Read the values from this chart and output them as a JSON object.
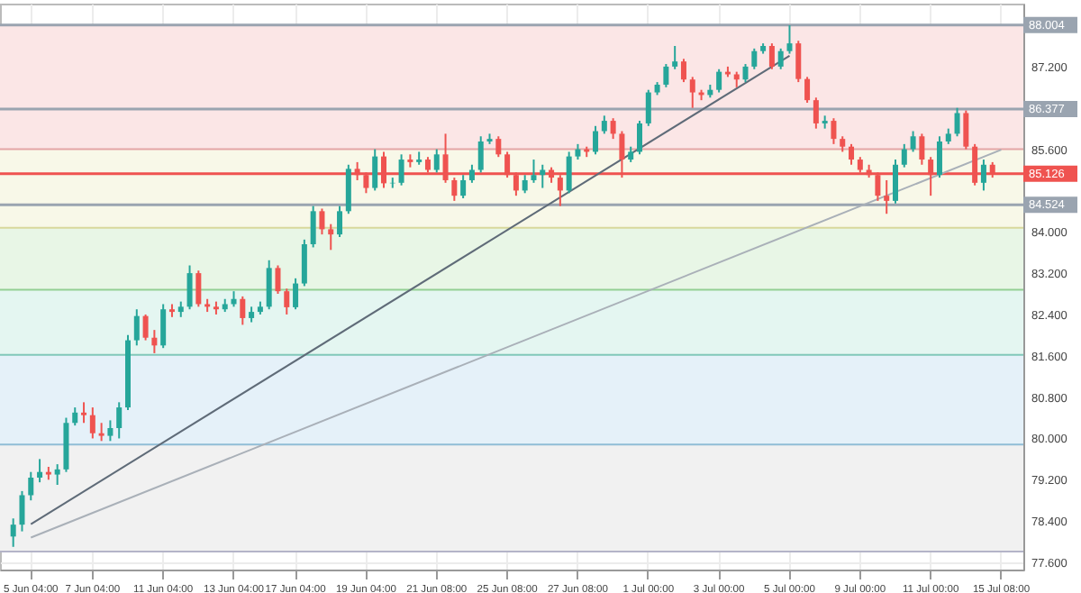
{
  "chart_data": {
    "type": "candlestick",
    "ylim": [
      77.46,
      88.42
    ],
    "categories": [
      null,
      null,
      null,
      "5 Jun 04:00",
      null,
      null,
      null,
      null,
      null,
      null,
      "7 Jun 04:00",
      null,
      null,
      null,
      null,
      null,
      null,
      null,
      "11 Jun 04:00",
      null,
      null,
      null,
      null,
      null,
      null,
      null,
      "13 Jun 04:00",
      null,
      null,
      null,
      null,
      null,
      null,
      "17 Jun 04:00",
      null,
      null,
      null,
      null,
      null,
      null,
      null,
      "19 Jun 04:00",
      null,
      null,
      null,
      null,
      null,
      null,
      null,
      "21 Jun 08:00",
      null,
      null,
      null,
      null,
      null,
      null,
      null,
      "25 Jun 08:00",
      null,
      null,
      null,
      null,
      null,
      null,
      null,
      "27 Jun 08:00",
      null,
      null,
      null,
      null,
      null,
      null,
      null,
      "1 Jul 00:00",
      null,
      null,
      null,
      null,
      null,
      null,
      null,
      "3 Jul 00:00",
      null,
      null,
      null,
      null,
      null,
      null,
      null,
      "5 Jul 00:00",
      null,
      null,
      null,
      null,
      null,
      null,
      null,
      "9 Jul 00:00",
      null,
      null,
      null,
      null,
      null,
      null,
      null,
      "11 Jul 00:00",
      null,
      null,
      null,
      null,
      null,
      null,
      null,
      "15 Jul 08:00",
      null,
      null
    ],
    "yticks": [
      {
        "value": 77.6,
        "label": "77.600"
      },
      {
        "value": 78.4,
        "label": "78.400"
      },
      {
        "value": 79.2,
        "label": "79.200"
      },
      {
        "value": 80,
        "label": "80.000"
      },
      {
        "value": 80.8,
        "label": "80.800"
      },
      {
        "value": 81.6,
        "label": "81.600"
      },
      {
        "value": 82.4,
        "label": "82.400"
      },
      {
        "value": 83.2,
        "label": "83.200"
      },
      {
        "value": 84,
        "label": "84.000"
      },
      {
        "value": 85.6,
        "label": "85.600"
      },
      {
        "value": 87.2,
        "label": "87.200"
      }
    ],
    "grid": true,
    "bands": [
      {
        "axis": "y",
        "from": 85.6,
        "to": 88.004,
        "color": "#fbe6e6"
      },
      {
        "axis": "y",
        "from": 84.08,
        "to": 85.6,
        "color": "#f8f8e8"
      },
      {
        "axis": "y",
        "from": 82.88,
        "to": 84.08,
        "color": "#e8f6e6"
      },
      {
        "axis": "y",
        "from": 81.62,
        "to": 82.88,
        "color": "#e4f6f1"
      },
      {
        "axis": "y",
        "from": 79.88,
        "to": 81.62,
        "color": "#e5f1f9"
      },
      {
        "axis": "y",
        "from": 77.81,
        "to": 79.88,
        "color": "#f1f1f1"
      }
    ],
    "ref_lines": [
      {
        "axis": "y",
        "value": 85.6,
        "color": "#e3a5a5"
      },
      {
        "axis": "y",
        "value": 84.08,
        "color": "#d8d89c"
      },
      {
        "axis": "y",
        "value": 82.88,
        "color": "#93cf93"
      },
      {
        "axis": "y",
        "value": 81.62,
        "color": "#80c7b9"
      },
      {
        "axis": "y",
        "value": 79.88,
        "color": "#90bdd6"
      },
      {
        "axis": "y",
        "value": 77.81,
        "color": "#b4b4c8"
      },
      {
        "axis": "y",
        "value": 88.004,
        "label": "88.004",
        "color": "#9aa4b0"
      },
      {
        "axis": "y",
        "value": 86.377,
        "label": "86.377",
        "color": "#9aa4b0"
      },
      {
        "axis": "y",
        "value": 84.524,
        "label": "84.524",
        "color": "#9aa4b0"
      },
      {
        "axis": "y",
        "value": 85.126,
        "label": "85.126",
        "color": "#ef5350"
      }
    ],
    "series": [
      {
        "type": "line",
        "color": "#5f6b78",
        "x": [
          "5 Jun 04:00",
          "5 Jul 00:00"
        ],
        "values": [
          78.34,
          87.41
        ]
      },
      {
        "type": "line",
        "color": "#a9b0b8",
        "x": [
          "5 Jun 04:00",
          "15 Jul 08:00"
        ],
        "values": [
          78.08,
          85.59
        ]
      },
      {
        "colors": [
          null,
          "#26a69a",
          "#26a69a",
          "#26a69a",
          "#26a69a",
          "#ef5350",
          "#26a69a",
          "#26a69a",
          "#26a69a",
          "#ef5350",
          "#ef5350",
          "#ef5350",
          "#26a69a",
          "#26a69a",
          "#26a69a",
          "#26a69a",
          "#ef5350",
          "#ef5350",
          "#26a69a",
          "#ef5350",
          "#26a69a",
          "#26a69a",
          "#ef5350",
          "#ef5350",
          "#ef5350",
          "#26a69a",
          "#26a69a",
          "#ef5350",
          "#26a69a",
          "#26a69a",
          "#26a69a",
          "#ef5350",
          "#ef5350",
          "#26a69a",
          "#26a69a",
          "#26a69a",
          "#ef5350",
          "#ef5350",
          "#26a69a",
          "#26a69a",
          "#ef5350",
          "#ef5350",
          "#26a69a",
          "#ef5350",
          "#26a69a",
          "#26a69a",
          "#ef5350",
          "#26a69a",
          "#ef5350",
          "#26a69a",
          "#ef5350",
          "#ef5350",
          "#26a69a",
          "#26a69a",
          "#26a69a",
          "#26a69a",
          "#ef5350",
          "#ef5350",
          "#ef5350",
          "#26a69a",
          "#26a69a",
          "#26a69a",
          "#ef5350",
          "#ef5350",
          "#26a69a",
          "#26a69a",
          "#ef5350",
          "#26a69a",
          "#26a69a",
          "#ef5350",
          "#ef5350",
          "#26a69a",
          "#26a69a",
          "#26a69a",
          "#26a69a",
          "#26a69a",
          "#26a69a",
          "#ef5350",
          "#ef5350",
          "#ef5350",
          "#26a69a",
          "#26a69a",
          "#ef5350",
          "#ef5350",
          "#26a69a",
          "#26a69a",
          "#26a69a",
          "#ef5350",
          "#26a69a",
          "#26a69a",
          "#ef5350",
          "#ef5350",
          "#ef5350",
          "#26a69a",
          "#ef5350",
          "#ef5350",
          "#ef5350",
          "#ef5350",
          "#ef5350",
          "#ef5350",
          "#ef5350",
          "#26a69a",
          "#26a69a",
          "#26a69a",
          "#ef5350",
          "#ef5350",
          "#26a69a",
          "#26a69a",
          "#26a69a",
          "#ef5350",
          "#ef5350",
          "#26a69a",
          "#ef5350",
          null,
          null,
          null
        ],
        "ohlc": [
          null,
          [
            78.1,
            78.45,
            77.9,
            78.33
          ],
          [
            78.33,
            78.98,
            78.2,
            78.9
          ],
          [
            78.9,
            79.35,
            78.8,
            79.24
          ],
          [
            79.24,
            79.6,
            79.15,
            79.35
          ],
          [
            79.35,
            79.45,
            79.2,
            79.3
          ],
          [
            79.3,
            79.5,
            79.1,
            79.4
          ],
          [
            79.4,
            80.4,
            79.35,
            80.3
          ],
          [
            80.3,
            80.6,
            80.25,
            80.5
          ],
          [
            80.5,
            80.7,
            80.3,
            80.45
          ],
          [
            80.45,
            80.6,
            80,
            80.1
          ],
          [
            80.1,
            80.3,
            79.95,
            80.05
          ],
          [
            80.05,
            80.35,
            79.95,
            80.2
          ],
          [
            80.2,
            80.7,
            80,
            80.6
          ],
          [
            80.6,
            82,
            80.55,
            81.9
          ],
          [
            81.9,
            82.5,
            81.8,
            82.37
          ],
          [
            82.37,
            82.4,
            81.9,
            81.95
          ],
          [
            81.95,
            82.1,
            81.65,
            81.8
          ],
          [
            81.8,
            82.6,
            81.75,
            82.5
          ],
          [
            82.5,
            82.6,
            82.35,
            82.45
          ],
          [
            82.45,
            82.65,
            82.35,
            82.55
          ],
          [
            82.55,
            83.35,
            82.5,
            83.2
          ],
          [
            83.2,
            83.25,
            82.55,
            82.6
          ],
          [
            82.6,
            82.7,
            82.45,
            82.55
          ],
          [
            82.55,
            82.65,
            82.4,
            82.5
          ],
          [
            82.5,
            82.7,
            82.45,
            82.6
          ],
          [
            82.6,
            82.85,
            82.55,
            82.7
          ],
          [
            82.7,
            82.75,
            82.2,
            82.33
          ],
          [
            82.33,
            82.55,
            82.25,
            82.45
          ],
          [
            82.45,
            82.65,
            82.4,
            82.55
          ],
          [
            82.55,
            83.45,
            82.5,
            83.3
          ],
          [
            83.3,
            83.35,
            82.8,
            82.85
          ],
          [
            82.85,
            82.9,
            82.4,
            82.54
          ],
          [
            82.54,
            83.1,
            82.5,
            83
          ],
          [
            83,
            83.85,
            82.95,
            83.76
          ],
          [
            83.76,
            84.5,
            83.7,
            84.4
          ],
          [
            84.4,
            84.45,
            83.95,
            84.05
          ],
          [
            84.05,
            84.15,
            83.65,
            83.95
          ],
          [
            83.95,
            84.5,
            83.9,
            84.4
          ],
          [
            84.4,
            85.3,
            84.35,
            85.22
          ],
          [
            85.22,
            85.35,
            85,
            85.1
          ],
          [
            85.1,
            85.15,
            84.75,
            84.85
          ],
          [
            84.85,
            85.6,
            84.8,
            85.46
          ],
          [
            85.46,
            85.55,
            84.85,
            84.94
          ],
          [
            84.94,
            85.05,
            84.85,
            84.95
          ],
          [
            84.95,
            85.5,
            84.9,
            85.4
          ],
          [
            85.4,
            85.5,
            85.25,
            85.35
          ],
          [
            85.35,
            85.55,
            85.3,
            85.4
          ],
          [
            85.4,
            85.45,
            85.15,
            85.2
          ],
          [
            85.2,
            85.6,
            85.15,
            85.5
          ],
          [
            85.5,
            85.9,
            84.95,
            85
          ],
          [
            85,
            85.05,
            84.6,
            84.7
          ],
          [
            84.7,
            85.1,
            84.65,
            85
          ],
          [
            85,
            85.3,
            84.95,
            85.2
          ],
          [
            85.2,
            85.85,
            85.15,
            85.75
          ],
          [
            85.75,
            85.9,
            85.7,
            85.8
          ],
          [
            85.8,
            85.85,
            85.45,
            85.5
          ],
          [
            85.5,
            85.55,
            85.05,
            85.1
          ],
          [
            85.1,
            85.15,
            84.7,
            84.8
          ],
          [
            84.8,
            85.1,
            84.75,
            85
          ],
          [
            85,
            85.4,
            84.95,
            85.1
          ],
          [
            85.1,
            85.3,
            84.85,
            85.2
          ],
          [
            85.2,
            85.25,
            84.95,
            85.05
          ],
          [
            85.05,
            85.1,
            84.5,
            84.8
          ],
          [
            84.8,
            85.55,
            84.75,
            85.46
          ],
          [
            85.46,
            85.7,
            85.4,
            85.6
          ],
          [
            85.6,
            85.65,
            85.45,
            85.55
          ],
          [
            85.55,
            86.05,
            85.5,
            85.95
          ],
          [
            85.95,
            86.25,
            85.9,
            86.15
          ],
          [
            86.15,
            86.2,
            85.8,
            85.9
          ],
          [
            85.9,
            85.95,
            85.05,
            85.4
          ],
          [
            85.4,
            85.65,
            85.35,
            85.55
          ],
          [
            85.55,
            86.15,
            85.5,
            86.1
          ],
          [
            86.1,
            86.75,
            86.05,
            86.7
          ],
          [
            86.7,
            86.9,
            86.65,
            86.85
          ],
          [
            86.85,
            87.25,
            86.8,
            87.2
          ],
          [
            87.2,
            87.6,
            87.15,
            87.3
          ],
          [
            87.3,
            87.35,
            86.9,
            86.95
          ],
          [
            86.95,
            87,
            86.4,
            86.7
          ],
          [
            86.7,
            86.75,
            86.55,
            86.65
          ],
          [
            86.65,
            86.85,
            86.6,
            86.75
          ],
          [
            86.75,
            87.15,
            86.7,
            87.1
          ],
          [
            87.1,
            87.2,
            87,
            87.05
          ],
          [
            87.05,
            87.1,
            86.8,
            86.95
          ],
          [
            86.95,
            87.25,
            86.9,
            87.2
          ],
          [
            87.2,
            87.55,
            87.15,
            87.5
          ],
          [
            87.5,
            87.65,
            87.45,
            87.6
          ],
          [
            87.6,
            87.65,
            87.15,
            87.2
          ],
          [
            87.2,
            87.55,
            87.15,
            87.5
          ],
          [
            87.5,
            88,
            87.45,
            87.65
          ],
          [
            87.65,
            87.7,
            86.9,
            86.96
          ],
          [
            86.96,
            87,
            86.5,
            86.55
          ],
          [
            86.55,
            86.6,
            86,
            86.1
          ],
          [
            86.1,
            86.25,
            86,
            86.15
          ],
          [
            86.15,
            86.2,
            85.7,
            85.8
          ],
          [
            85.8,
            85.85,
            85.55,
            85.65
          ],
          [
            85.65,
            85.7,
            85.3,
            85.4
          ],
          [
            85.4,
            85.45,
            85.15,
            85.2
          ],
          [
            85.2,
            85.3,
            85.05,
            85.1
          ],
          [
            85.1,
            85.15,
            84.6,
            84.7
          ],
          [
            84.7,
            85,
            84.35,
            84.6
          ],
          [
            84.6,
            85.4,
            84.55,
            85.3
          ],
          [
            85.3,
            85.7,
            85.25,
            85.6
          ],
          [
            85.6,
            85.95,
            85.55,
            85.85
          ],
          [
            85.85,
            85.9,
            85.3,
            85.4
          ],
          [
            85.4,
            85.45,
            84.7,
            85.1
          ],
          [
            85.1,
            85.85,
            85.05,
            85.75
          ],
          [
            85.75,
            86,
            85.7,
            85.9
          ],
          [
            85.9,
            86.4,
            85.85,
            86.3
          ],
          [
            86.3,
            86.35,
            85.6,
            85.65
          ],
          [
            85.65,
            85.7,
            84.9,
            84.95
          ],
          [
            84.95,
            85.4,
            84.8,
            85.3
          ],
          [
            85.3,
            85.35,
            85.05,
            85.13
          ],
          null,
          null,
          null
        ]
      }
    ]
  }
}
